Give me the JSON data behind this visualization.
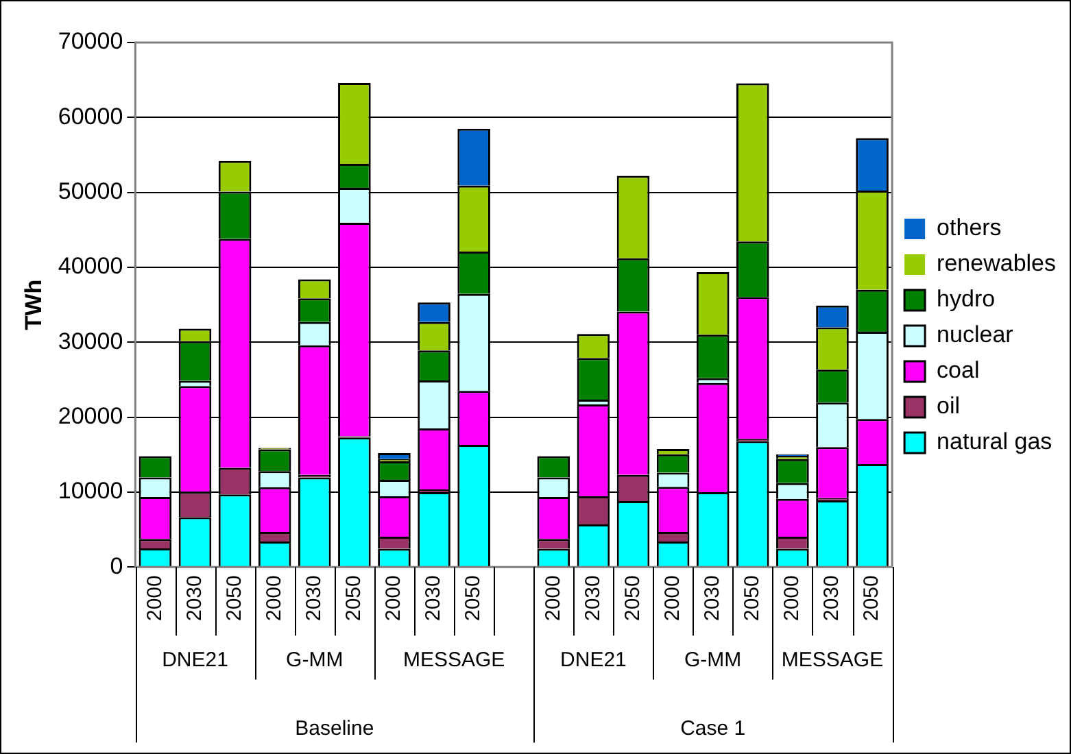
{
  "chart_data": {
    "type": "bar",
    "stacked": true,
    "ylabel": "TWh",
    "categories": [
      "2000",
      "2030",
      "2050",
      "2000",
      "2030",
      "2050",
      "2000",
      "2030",
      "2050",
      null,
      "2000",
      "2030",
      "2050",
      "2000",
      "2030",
      "2050",
      "2000",
      "2030",
      "2050"
    ],
    "series": [
      {
        "name": "natural gas",
        "color": "#00ffff",
        "values": [
          2500,
          6650,
          9700,
          3400,
          11950,
          17300,
          2450,
          10000,
          16300,
          null,
          2450,
          5700,
          8800,
          3400,
          10000,
          16800,
          2450,
          8900,
          13750
        ]
      },
      {
        "name": "oil",
        "color": "#993366",
        "values": [
          1250,
          3400,
          3550,
          1300,
          350,
          150,
          1600,
          350,
          null,
          null,
          1300,
          3750,
          3500,
          1300,
          null,
          300,
          1600,
          300,
          null
        ]
      },
      {
        "name": "coal",
        "color": "#ff00ff",
        "values": [
          5600,
          14100,
          30550,
          5950,
          17300,
          28500,
          5400,
          8150,
          7200,
          null,
          5600,
          12250,
          21800,
          6000,
          14550,
          18950,
          5050,
          6800,
          6000
        ]
      },
      {
        "name": "nuclear",
        "color": "#ccffff",
        "values": [
          2600,
          700,
          null,
          2150,
          3100,
          4650,
          2200,
          6400,
          12950,
          null,
          2600,
          650,
          null,
          1900,
          650,
          null,
          2100,
          5950,
          11650
        ]
      },
      {
        "name": "hydro",
        "color": "#008000",
        "values": [
          2850,
          5300,
          6300,
          2900,
          3150,
          3200,
          2450,
          4000,
          5650,
          null,
          2850,
          5550,
          7100,
          2450,
          5800,
          7400,
          3200,
          4400,
          5600
        ]
      },
      {
        "name": "renewables",
        "color": "#99cc00",
        "values": [
          null,
          1650,
          4100,
          200,
          2550,
          10800,
          300,
          3800,
          8800,
          null,
          null,
          3200,
          11000,
          700,
          8350,
          21100,
          450,
          5650,
          13250
        ]
      },
      {
        "name": "others",
        "color": "#0066cc",
        "values": [
          null,
          null,
          null,
          null,
          null,
          null,
          800,
          2600,
          7600,
          null,
          null,
          null,
          null,
          null,
          null,
          null,
          200,
          2900,
          7000
        ]
      }
    ],
    "ylim": [
      0,
      70000
    ],
    "yticks": [
      0,
      10000,
      20000,
      30000,
      40000,
      50000,
      60000,
      70000
    ],
    "grid": "y",
    "legend": "right",
    "annotations": [
      "DNE21",
      "G-MM",
      "MESSAGE",
      "DNE21",
      "G-MM",
      "MESSAGE",
      "Baseline",
      "Case 1"
    ]
  }
}
